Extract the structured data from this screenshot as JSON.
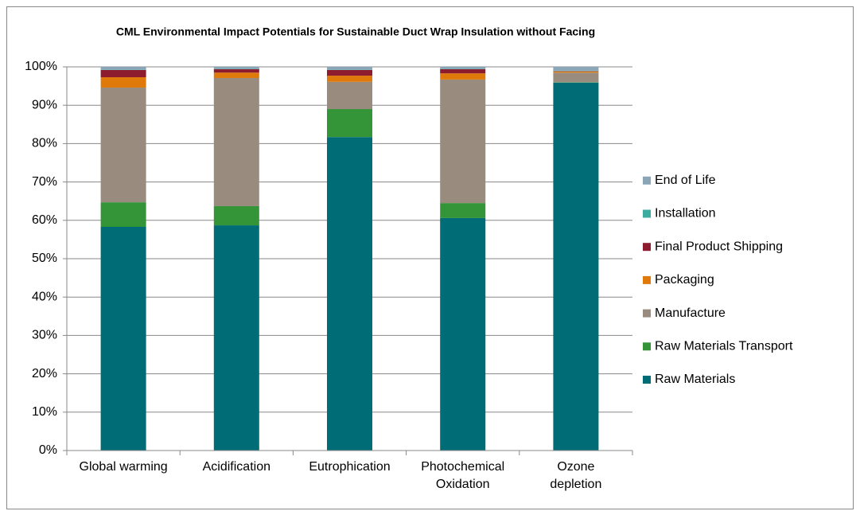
{
  "chart_data": {
    "type": "stacked_bar",
    "title": "CML Environmental Impact Potentials for Sustainable Duct Wrap Insulation without Facing",
    "categories": [
      "Global warming",
      "Acidification",
      "Eutrophication",
      "Photochemical\nOxidation",
      "Ozone\ndepletion"
    ],
    "series": [
      {
        "name": "Raw Materials",
        "color": "#006c75",
        "values": [
          58.3,
          58.7,
          81.7,
          60.6,
          95.9
        ]
      },
      {
        "name": "Raw Materials Transport",
        "color": "#339438",
        "values": [
          6.4,
          5.0,
          7.3,
          3.9,
          0.1
        ]
      },
      {
        "name": "Manufacture",
        "color": "#998c7f",
        "values": [
          29.9,
          33.4,
          7.1,
          32.2,
          2.5
        ]
      },
      {
        "name": "Packaging",
        "color": "#df7a0a",
        "values": [
          2.7,
          1.4,
          1.6,
          1.6,
          0.3
        ]
      },
      {
        "name": "Final Product Shipping",
        "color": "#8c1c2e",
        "values": [
          1.9,
          0.9,
          1.5,
          1.1,
          0.1
        ]
      },
      {
        "name": "Installation",
        "color": "#3aaca2",
        "values": [
          0.1,
          0.1,
          0.1,
          0.1,
          0.1
        ]
      },
      {
        "name": "End of Life",
        "color": "#8aa5b7",
        "values": [
          0.7,
          0.5,
          0.7,
          0.5,
          1.0
        ]
      }
    ],
    "ylim": [
      0,
      100
    ],
    "yticks": [
      {
        "value": 0,
        "label": "0%"
      },
      {
        "value": 10,
        "label": "10%"
      },
      {
        "value": 20,
        "label": "20%"
      },
      {
        "value": 30,
        "label": "30%"
      },
      {
        "value": 40,
        "label": "40%"
      },
      {
        "value": 50,
        "label": "50%"
      },
      {
        "value": 60,
        "label": "60%"
      },
      {
        "value": 70,
        "label": "70%"
      },
      {
        "value": 80,
        "label": "80%"
      },
      {
        "value": 90,
        "label": "90%"
      },
      {
        "value": 100,
        "label": "100%"
      }
    ],
    "grid": true,
    "legend": "right"
  }
}
